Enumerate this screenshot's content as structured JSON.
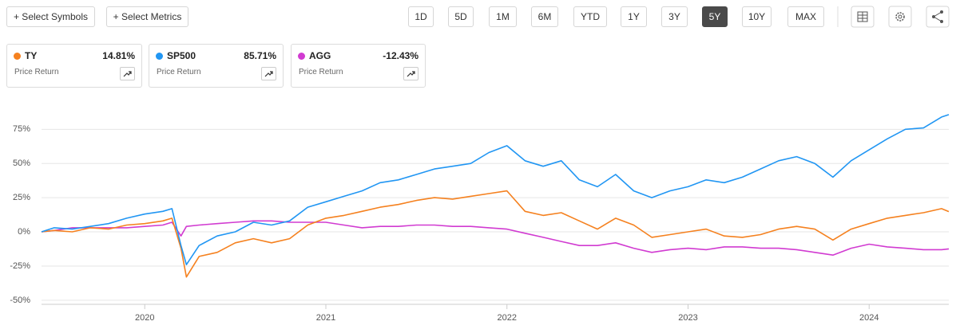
{
  "toolbar": {
    "buttons": [
      "+ Select Symbols",
      "+ Select Metrics"
    ],
    "ranges": [
      "1D",
      "5D",
      "1M",
      "6M",
      "YTD",
      "1Y",
      "3Y",
      "5Y",
      "10Y",
      "MAX"
    ],
    "active_range": "5Y"
  },
  "chart_data": {
    "type": "line",
    "x": [
      2019.43,
      2019.5,
      2019.6,
      2019.7,
      2019.8,
      2019.9,
      2020.0,
      2020.1,
      2020.15,
      2020.2,
      2020.23,
      2020.3,
      2020.4,
      2020.5,
      2020.6,
      2020.7,
      2020.8,
      2020.9,
      2021.0,
      2021.1,
      2021.2,
      2021.3,
      2021.4,
      2021.5,
      2021.6,
      2021.7,
      2021.8,
      2021.9,
      2022.0,
      2022.1,
      2022.2,
      2022.3,
      2022.4,
      2022.5,
      2022.6,
      2022.7,
      2022.8,
      2022.9,
      2023.0,
      2023.1,
      2023.2,
      2023.3,
      2023.4,
      2023.5,
      2023.6,
      2023.7,
      2023.8,
      2023.9,
      2024.0,
      2024.1,
      2024.2,
      2024.3,
      2024.4,
      2024.44
    ],
    "series": [
      {
        "name": "TY",
        "color": "#f5811f",
        "change_label": "14.81%",
        "metric": "Price Return",
        "values": [
          0,
          1,
          0,
          3,
          2,
          5,
          6,
          8,
          10,
          -12,
          -33,
          -18,
          -15,
          -8,
          -5,
          -8,
          -5,
          5,
          10,
          12,
          15,
          18,
          20,
          23,
          25,
          24,
          26,
          28,
          30,
          15,
          12,
          14,
          8,
          2,
          10,
          5,
          -4,
          -2,
          0,
          2,
          -3,
          -4,
          -2,
          2,
          4,
          2,
          -6,
          2,
          6,
          10,
          12,
          14,
          17,
          14.81
        ]
      },
      {
        "name": "SP500",
        "color": "#2196f3",
        "change_label": "85.71%",
        "metric": "Price Return",
        "values": [
          0,
          3,
          2,
          4,
          6,
          10,
          13,
          15,
          17,
          -10,
          -24,
          -10,
          -3,
          0,
          7,
          5,
          8,
          18,
          22,
          26,
          30,
          36,
          38,
          42,
          46,
          48,
          50,
          58,
          63,
          52,
          48,
          52,
          38,
          33,
          42,
          30,
          25,
          30,
          33,
          38,
          36,
          40,
          46,
          52,
          55,
          50,
          40,
          52,
          60,
          68,
          75,
          76,
          84,
          85.71
        ]
      },
      {
        "name": "AGG",
        "color": "#d13bd1",
        "change_label": "-12.43%",
        "metric": "Price Return",
        "values": [
          0,
          1,
          3,
          3,
          3,
          3,
          4,
          5,
          7,
          -3,
          4,
          5,
          6,
          7,
          8,
          8,
          7,
          7,
          7,
          5,
          3,
          4,
          4,
          5,
          5,
          4,
          4,
          3,
          2,
          -1,
          -4,
          -7,
          -10,
          -10,
          -8,
          -12,
          -15,
          -13,
          -12,
          -13,
          -11,
          -11,
          -12,
          -12,
          -13,
          -15,
          -17,
          -12,
          -9,
          -11,
          -12,
          -13,
          -13,
          -12.43
        ]
      }
    ],
    "xlim": [
      2019.43,
      2024.44
    ],
    "xticks": [
      2020,
      2021,
      2022,
      2023,
      2024
    ],
    "ylim": [
      -53,
      95
    ],
    "yticks": [
      {
        "value": -50,
        "label": "-50%"
      },
      {
        "value": -25,
        "label": "-25%"
      },
      {
        "value": 0,
        "label": "0%"
      },
      {
        "value": 25,
        "label": "25%"
      },
      {
        "value": 50,
        "label": "50%"
      },
      {
        "value": 75,
        "label": "75%"
      }
    ],
    "grid": true
  }
}
